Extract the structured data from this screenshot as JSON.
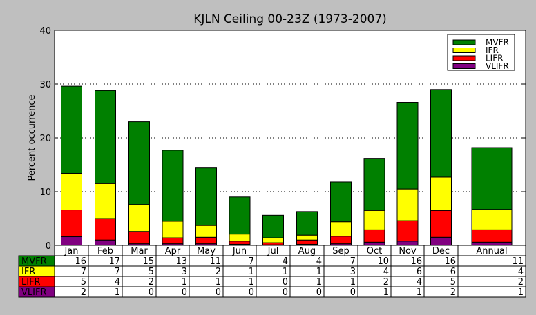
{
  "chart_data": {
    "type": "bar",
    "stacked": true,
    "title": "KJLN Ceiling 00-23Z (1973-2007)",
    "ylabel": "Percent occurrence",
    "xlabel": "",
    "ylim": [
      0,
      40
    ],
    "yticks": [
      0,
      10,
      20,
      30,
      40
    ],
    "grid": "horizontal dotted",
    "legend_position": "top-right",
    "categories": [
      "Jan",
      "Feb",
      "Mar",
      "Apr",
      "May",
      "Jun",
      "Jul",
      "Aug",
      "Sep",
      "Oct",
      "Nov",
      "Dec",
      "Annual"
    ],
    "series": [
      {
        "name": "VLIFR",
        "color": "#800080",
        "values": [
          1.6,
          1.0,
          0.3,
          0.3,
          0.3,
          0.2,
          0.1,
          0.2,
          0.3,
          0.6,
          0.8,
          1.5,
          0.6
        ]
      },
      {
        "name": "LIFR",
        "color": "#ff0000",
        "values": [
          5.0,
          4.0,
          2.3,
          1.1,
          1.2,
          0.6,
          0.4,
          0.8,
          1.4,
          2.3,
          3.8,
          5.0,
          2.3
        ]
      },
      {
        "name": "IFR",
        "color": "#ffff00",
        "values": [
          6.8,
          6.5,
          5.0,
          3.1,
          2.2,
          1.3,
          0.9,
          0.9,
          2.7,
          3.6,
          5.9,
          6.2,
          3.8
        ]
      },
      {
        "name": "MVFR",
        "color": "#008000",
        "values": [
          16.2,
          17.3,
          15.4,
          13.2,
          10.7,
          6.9,
          4.2,
          4.4,
          7.4,
          9.7,
          16.1,
          16.3,
          11.5
        ]
      }
    ],
    "table": {
      "rows": [
        {
          "label": "MVFR",
          "color": "#008000",
          "values": [
            "16",
            "17",
            "15",
            "13",
            "11",
            "7",
            "4",
            "4",
            "7",
            "10",
            "16",
            "16",
            "11"
          ]
        },
        {
          "label": "IFR",
          "color": "#ffff00",
          "values": [
            "7",
            "7",
            "5",
            "3",
            "2",
            "1",
            "1",
            "1",
            "3",
            "4",
            "6",
            "6",
            "4"
          ]
        },
        {
          "label": "LIFR",
          "color": "#ff0000",
          "values": [
            "5",
            "4",
            "2",
            "1",
            "1",
            "1",
            "0",
            "1",
            "1",
            "2",
            "4",
            "5",
            "2"
          ]
        },
        {
          "label": "VLIFR",
          "color": "#800080",
          "values": [
            "2",
            "1",
            "0",
            "0",
            "0",
            "0",
            "0",
            "0",
            "0",
            "1",
            "1",
            "2",
            "1"
          ]
        }
      ]
    }
  }
}
